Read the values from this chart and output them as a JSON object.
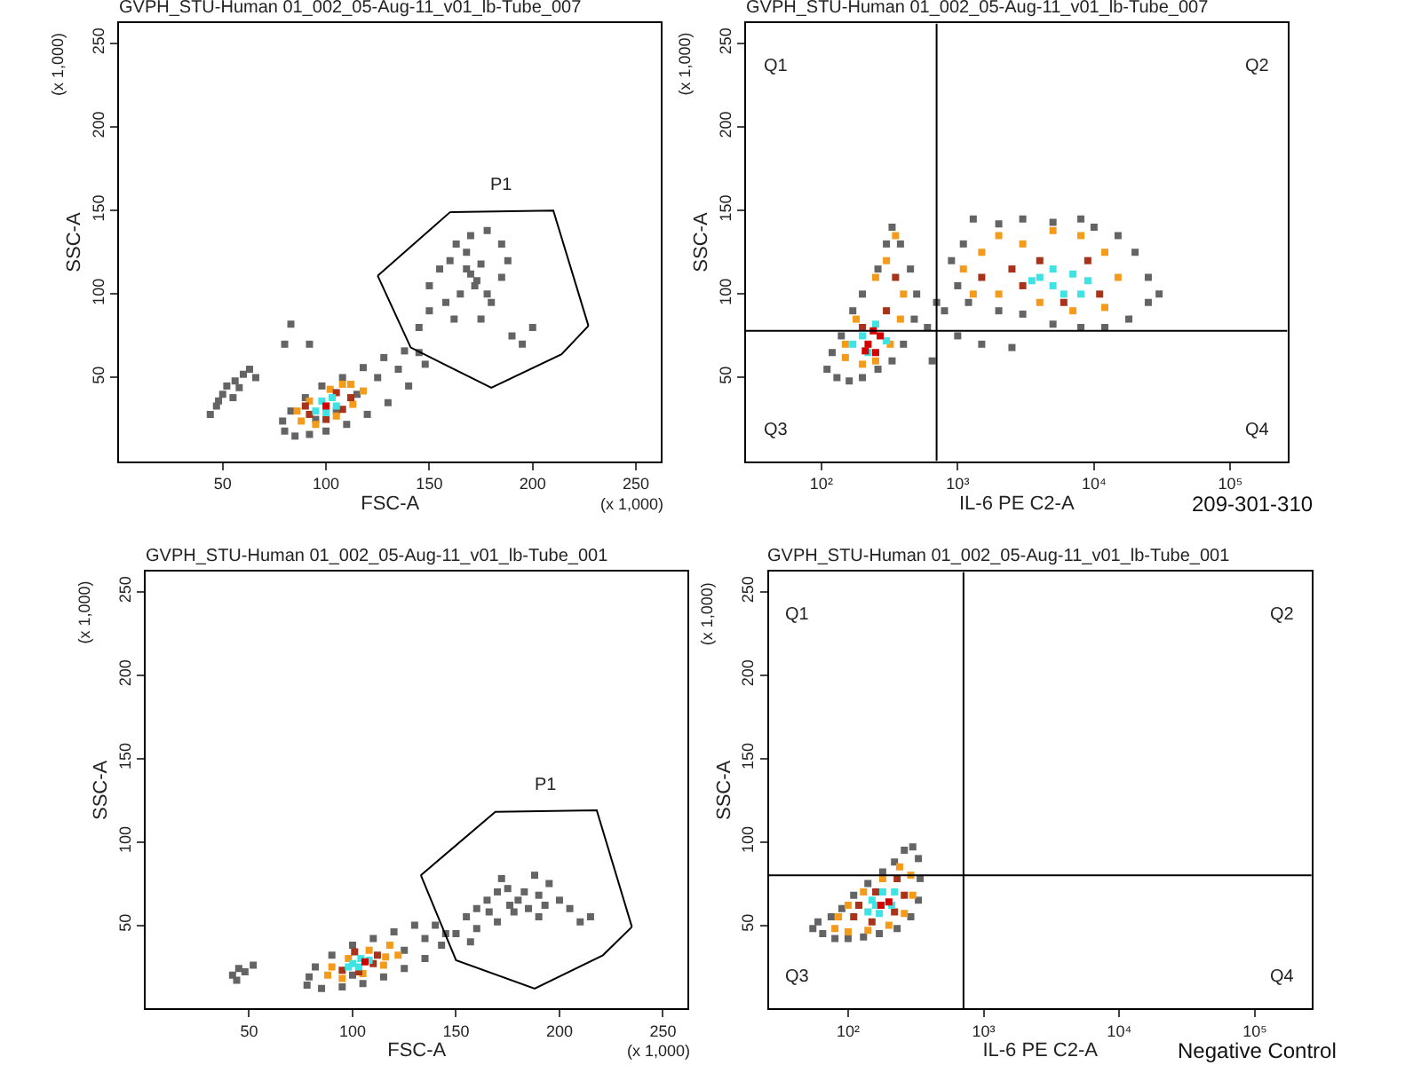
{
  "chart_data": [
    {
      "type": "scatter",
      "title": "GVPH_STU-Human 01_002_05-Aug-11_v01_lb-Tube_007",
      "xlabel": "FSC-A",
      "ylabel": "SSC-A",
      "marker": "square",
      "xlim": [
        0,
        262
      ],
      "xticks": [
        50,
        100,
        150,
        200,
        250
      ],
      "ylim": [
        0,
        262
      ],
      "yticks": [
        50,
        100,
        150,
        200,
        250
      ],
      "series": [
        {
          "color": "#646464",
          "x": [
            80,
            85,
            92,
            100,
            110,
            120,
            130,
            140,
            148,
            145,
            138,
            128,
            118,
            108,
            98,
            90,
            83,
            79,
            95,
            115,
            125,
            135,
            105,
            44,
            47,
            50,
            52,
            56,
            60,
            63,
            55,
            48,
            58,
            66,
            150,
            155,
            160,
            163,
            168,
            170,
            172,
            175,
            178,
            180,
            165,
            170,
            185,
            188,
            158,
            162,
            175,
            190,
            195,
            200,
            150,
            145,
            185,
            178,
            168,
            173,
            83,
            80,
            92
          ],
          "values": [
            18,
            15,
            16,
            18,
            22,
            28,
            35,
            45,
            58,
            65,
            66,
            62,
            56,
            50,
            45,
            38,
            30,
            24,
            25,
            40,
            50,
            55,
            30,
            28,
            33,
            40,
            45,
            48,
            52,
            55,
            38,
            36,
            44,
            50,
            105,
            115,
            120,
            130,
            125,
            112,
            105,
            118,
            100,
            95,
            100,
            135,
            110,
            120,
            95,
            85,
            85,
            75,
            70,
            80,
            90,
            80,
            130,
            138,
            115,
            108,
            82,
            70,
            70
          ]
        },
        {
          "color": "#f59b1c",
          "x": [
            88,
            95,
            105,
            113,
            118,
            112,
            102,
            92,
            86,
            108
          ],
          "values": [
            24,
            22,
            27,
            34,
            42,
            46,
            43,
            36,
            30,
            46
          ]
        },
        {
          "color": "#a8321a",
          "x": [
            92,
            100,
            108,
            112,
            105,
            90
          ],
          "values": [
            28,
            25,
            31,
            38,
            41,
            33
          ]
        },
        {
          "color": "#3fe3e3",
          "x": [
            95,
            100,
            105,
            103,
            98
          ],
          "values": [
            30,
            29,
            33,
            38,
            36
          ]
        },
        {
          "color": "#d40000",
          "x": [
            100
          ],
          "values": [
            33
          ]
        },
        {
          "type": "line",
          "marker": "none",
          "color": "#000000",
          "x": [
            125,
            160,
            210,
            227
          ],
          "values": [
            111,
            149,
            150,
            81
          ]
        },
        {
          "type": "line",
          "marker": "none",
          "color": "#000000",
          "x": [
            125,
            141,
            180,
            214,
            227
          ],
          "values": [
            111,
            68,
            44,
            64,
            81
          ]
        }
      ],
      "annotations": [
        "P1",
        "(x 1,000)",
        "(x 1,000)"
      ]
    },
    {
      "type": "scatter",
      "title": "GVPH_STU-Human 01_002_05-Aug-11_v01_lb-Tube_007",
      "xlabel": "IL-6 PE C2-A",
      "ylabel": "SSC-A",
      "marker": "square",
      "log": "x",
      "xlim": [
        28,
        262144
      ],
      "xticks": [
        {
          "value": 100,
          "label": "10²"
        },
        {
          "value": 1000,
          "label": "10³"
        },
        {
          "value": 10000,
          "label": "10⁴"
        },
        {
          "value": 100000,
          "label": "10⁵"
        }
      ],
      "ylim": [
        0,
        262
      ],
      "yticks": [
        50,
        100,
        150,
        200,
        250
      ],
      "series": [
        {
          "color": "#646464",
          "x": [
            110,
            130,
            160,
            200,
            260,
            330,
            400,
            480,
            500,
            450,
            380,
            330,
            300,
            260,
            200,
            170,
            140,
            120,
            600,
            650,
            700,
            800,
            1000,
            1100,
            1300,
            2000,
            3000,
            5000,
            8000,
            10000,
            15000,
            20000,
            25000,
            30000,
            25000,
            18000,
            12000,
            8000,
            5000,
            3000,
            2000,
            1200,
            900,
            1500,
            2500,
            1000
          ],
          "values": [
            55,
            50,
            48,
            50,
            55,
            60,
            70,
            85,
            100,
            115,
            130,
            140,
            130,
            115,
            100,
            90,
            75,
            65,
            80,
            60,
            95,
            90,
            105,
            130,
            145,
            142,
            145,
            143,
            145,
            140,
            135,
            125,
            110,
            100,
            95,
            85,
            80,
            80,
            82,
            88,
            90,
            95,
            120,
            70,
            68,
            75
          ]
        },
        {
          "color": "#f59b1c",
          "x": [
            150,
            200,
            250,
            320,
            380,
            400,
            300,
            250,
            180,
            350,
            150,
            1100,
            1500,
            2000,
            3000,
            5000,
            8000,
            12000,
            15000,
            12000,
            7000,
            4000,
            2000,
            1300
          ],
          "values": [
            62,
            58,
            60,
            70,
            85,
            100,
            120,
            110,
            85,
            135,
            70,
            115,
            125,
            135,
            130,
            138,
            135,
            125,
            110,
            92,
            90,
            95,
            100,
            100
          ]
        },
        {
          "color": "#a8321a",
          "x": [
            200,
            300,
            350,
            2500,
            4000,
            9000,
            11000,
            6000,
            3000,
            1500
          ],
          "values": [
            80,
            90,
            110,
            115,
            120,
            120,
            100,
            95,
            105,
            110
          ]
        },
        {
          "color": "#3fe3e3",
          "x": [
            170,
            220,
            300,
            250,
            200,
            4000,
            5000,
            7000,
            9000,
            6000,
            8000,
            5000,
            3500
          ],
          "values": [
            70,
            65,
            72,
            82,
            75,
            110,
            115,
            112,
            108,
            100,
            100,
            105,
            108
          ]
        },
        {
          "color": "#d40000",
          "x": [
            220,
            250,
            270,
            240,
            210
          ],
          "values": [
            70,
            65,
            75,
            78,
            66
          ]
        }
      ],
      "ref_lines": [
        {
          "axis": "x",
          "value": 700,
          "color": "#000000"
        },
        {
          "axis": "y",
          "value": 78,
          "color": "#000000"
        }
      ],
      "annotations": [
        "Q1",
        "Q2",
        "Q3",
        "Q4",
        "(x 1,000)",
        "209-301-310"
      ]
    },
    {
      "type": "scatter",
      "title": "GVPH_STU-Human 01_002_05-Aug-11_v01_lb-Tube_001",
      "xlabel": "FSC-A",
      "ylabel": "SSC-A",
      "marker": "square",
      "xlim": [
        0,
        262
      ],
      "xticks": [
        50,
        100,
        150,
        200,
        250
      ],
      "ylim": [
        0,
        262
      ],
      "yticks": [
        50,
        100,
        150,
        200,
        250
      ],
      "series": [
        {
          "color": "#646464",
          "x": [
            78,
            85,
            95,
            105,
            115,
            125,
            135,
            143,
            145,
            140,
            130,
            120,
            110,
            100,
            90,
            82,
            79,
            100,
            125,
            135,
            42,
            45,
            48,
            44,
            52,
            155,
            160,
            165,
            170,
            175,
            180,
            185,
            190,
            195,
            190,
            178,
            170,
            160,
            150,
            188,
            200,
            210,
            205,
            172,
            183,
            166,
            176,
            193,
            215,
            157
          ],
          "values": [
            14,
            12,
            13,
            15,
            19,
            24,
            30,
            38,
            45,
            50,
            50,
            46,
            42,
            38,
            32,
            25,
            19,
            20,
            35,
            42,
            20,
            24,
            22,
            17,
            26,
            55,
            60,
            65,
            70,
            72,
            65,
            60,
            68,
            75,
            55,
            58,
            52,
            48,
            45,
            80,
            65,
            52,
            60,
            78,
            70,
            58,
            62,
            62,
            55,
            40
          ]
        },
        {
          "color": "#f59b1c",
          "x": [
            88,
            95,
            105,
            115,
            122,
            118,
            108,
            98,
            90,
            116
          ],
          "values": [
            20,
            18,
            21,
            26,
            32,
            38,
            35,
            30,
            25,
            31
          ]
        },
        {
          "color": "#a8321a",
          "x": [
            95,
            103,
            110,
            112,
            101
          ],
          "values": [
            23,
            22,
            27,
            32,
            34
          ]
        },
        {
          "color": "#3fe3e3",
          "x": [
            98,
            103,
            108,
            104,
            100
          ],
          "values": [
            25,
            25,
            29,
            30,
            27
          ]
        },
        {
          "color": "#d40000",
          "x": [
            106
          ],
          "values": [
            28
          ]
        },
        {
          "type": "line",
          "marker": "none",
          "color": "#000000",
          "x": [
            133,
            169,
            218,
            235
          ],
          "values": [
            80,
            118,
            119,
            49
          ]
        },
        {
          "type": "line",
          "marker": "none",
          "color": "#000000",
          "x": [
            133,
            150,
            188,
            221,
            235
          ],
          "values": [
            80,
            29,
            12,
            32,
            49
          ]
        }
      ],
      "annotations": [
        "P1",
        "(x 1,000)",
        "(x 1,000)"
      ]
    },
    {
      "type": "scatter",
      "title": "GVPH_STU-Human 01_002_05-Aug-11_v01_lb-Tube_001",
      "xlabel": "IL-6 PE C2-A",
      "ylabel": "SSC-A",
      "marker": "square",
      "log": "x",
      "xlim": [
        26,
        262144
      ],
      "xticks": [
        {
          "value": 100,
          "label": "10²"
        },
        {
          "value": 1000,
          "label": "10³"
        },
        {
          "value": 10000,
          "label": "10⁴"
        },
        {
          "value": 100000,
          "label": "10⁵"
        }
      ],
      "ylim": [
        0,
        262
      ],
      "yticks": [
        50,
        100,
        150,
        200,
        250
      ],
      "series": [
        {
          "color": "#646464",
          "x": [
            55,
            65,
            80,
            100,
            130,
            170,
            230,
            290,
            330,
            340,
            330,
            300,
            260,
            220,
            180,
            140,
            110,
            90,
            75,
            60
          ],
          "values": [
            48,
            45,
            42,
            42,
            43,
            45,
            48,
            55,
            65,
            78,
            90,
            97,
            95,
            88,
            82,
            75,
            68,
            60,
            55,
            52
          ]
        },
        {
          "color": "#f59b1c",
          "x": [
            80,
            100,
            140,
            200,
            260,
            300,
            290,
            240,
            180,
            130,
            100,
            85
          ],
          "values": [
            48,
            46,
            47,
            50,
            57,
            68,
            80,
            85,
            78,
            70,
            62,
            55
          ]
        },
        {
          "color": "#a8321a",
          "x": [
            110,
            150,
            220,
            260,
            230,
            160,
            120
          ],
          "values": [
            55,
            52,
            58,
            68,
            78,
            70,
            62
          ]
        },
        {
          "color": "#3fe3e3",
          "x": [
            140,
            170,
            210,
            220,
            180,
            150,
            160
          ],
          "values": [
            58,
            57,
            62,
            70,
            70,
            65,
            62
          ]
        },
        {
          "color": "#d40000",
          "x": [
            175,
            200
          ],
          "values": [
            62,
            64
          ]
        }
      ],
      "ref_lines": [
        {
          "axis": "x",
          "value": 710,
          "color": "#000000"
        },
        {
          "axis": "y",
          "value": 80,
          "color": "#000000"
        }
      ],
      "annotations": [
        "Q1",
        "Q2",
        "Q3",
        "Q4",
        "(x 1,000)",
        "Negative Control"
      ]
    }
  ]
}
